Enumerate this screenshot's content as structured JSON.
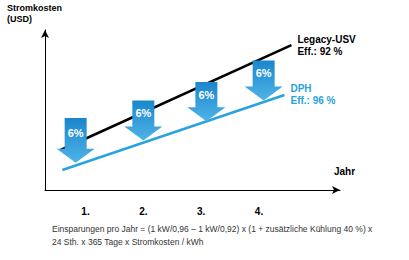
{
  "chart_data": {
    "type": "line",
    "y_label": "Stromkosten\n(USD)",
    "x_label": "Jahr",
    "xlim": [
      0.3,
      5.4
    ],
    "xticks": [
      {
        "value": 1,
        "label": "1."
      },
      {
        "value": 2,
        "label": "2."
      },
      {
        "value": 3,
        "label": "3."
      },
      {
        "value": 4,
        "label": "4."
      }
    ],
    "ylim": [
      0,
      100
    ],
    "yticks": [],
    "tick_labels": "x",
    "grid": false,
    "series": [
      {
        "name": "Legacy-USV",
        "annotation": "Eff.: 92 %",
        "color": "#000000",
        "x": [
          0.57,
          4.56
        ],
        "values": [
          25,
          90.6
        ]
      },
      {
        "name": "DPH",
        "annotation": "Eff.: 96 %",
        "color": "#29a3dc",
        "x": [
          0.6,
          4.44
        ],
        "values": [
          12.5,
          59.4
        ]
      }
    ],
    "arrows": {
      "color": "#1a86cc",
      "items": [
        {
          "x": 0.83,
          "top": 45,
          "bottom": 17,
          "label": "6%"
        },
        {
          "x": 2.0,
          "top": 56,
          "bottom": 31,
          "label": "6%"
        },
        {
          "x": 3.09,
          "top": 67.5,
          "bottom": 43,
          "label": "6%"
        },
        {
          "x": 4.08,
          "top": 81,
          "bottom": 56,
          "label": "6%"
        }
      ]
    },
    "footnote": "Einsparungen pro Jahr = (1 kW/0,96 – 1 kW/0,92) x (1 + zusätzliche Kühlung 40 %) x\n24 Sth. x 365 Tage x Stromkosten / kWh"
  }
}
